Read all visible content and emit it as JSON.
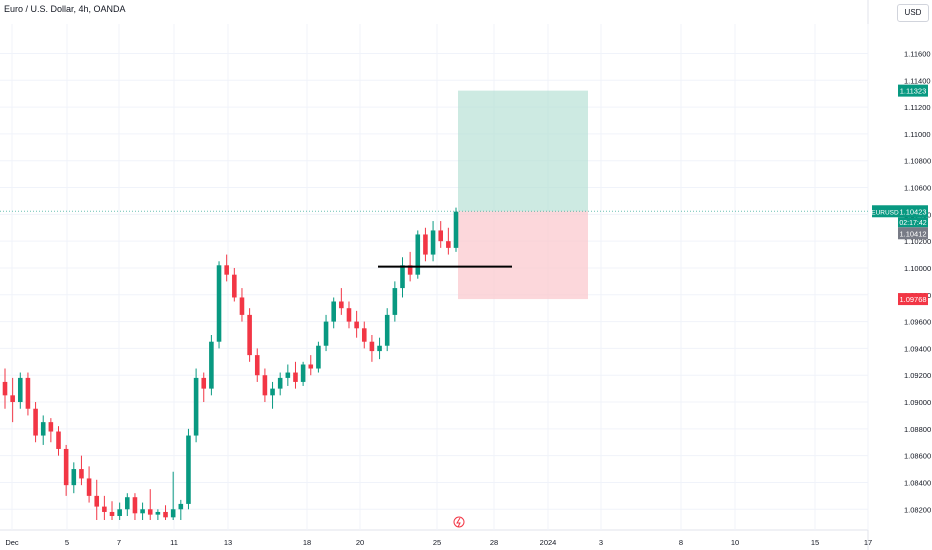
{
  "header": {
    "title": "Euro / U.S. Dollar, 4h, OANDA",
    "currency_button": "USD"
  },
  "chart_data": {
    "type": "candlestick",
    "title": "Euro / U.S. Dollar, 4h, OANDA",
    "symbol": "EURUSD",
    "y_range": [
      1.0812,
      1.1182
    ],
    "y_ticks": [
      "1.11600",
      "1.11400",
      "1.11200",
      "1.11000",
      "1.10800",
      "1.10600",
      "1.10400",
      "1.10200",
      "1.10000",
      "1.09800",
      "1.09600",
      "1.09400",
      "1.09200",
      "1.09000",
      "1.08800",
      "1.08600",
      "1.08400",
      "1.08200"
    ],
    "x_tick_labels": [
      "Dec",
      "5",
      "7",
      "11",
      "13",
      "18",
      "20",
      "25",
      "28",
      "2024",
      "3",
      "8",
      "10",
      "15",
      "17"
    ],
    "last_price": {
      "label": "EURUSD",
      "value": "1.10423",
      "countdown": "02:17:42",
      "color": "#089981"
    },
    "price_tags": [
      {
        "value": "1.11323",
        "color": "#089981"
      },
      {
        "value": "1.10412",
        "color": "#787b86"
      },
      {
        "value": "1.09768",
        "color": "#f23645"
      }
    ],
    "position": {
      "entry": 1.10423,
      "target": 1.11323,
      "stop": 1.09768,
      "profit_color": "#b2dfd3",
      "loss_color": "#fbc9cf"
    },
    "support_line": {
      "price": 1.1001
    },
    "candles": [
      [
        1.0915,
        1.0925,
        1.0895,
        1.0905
      ],
      [
        1.0905,
        1.0918,
        1.0885,
        1.09
      ],
      [
        1.09,
        1.0922,
        1.0895,
        1.0918
      ],
      [
        1.0918,
        1.0922,
        1.089,
        1.0895
      ],
      [
        1.0895,
        1.09,
        1.087,
        1.0875
      ],
      [
        1.0875,
        1.089,
        1.0868,
        1.0885
      ],
      [
        1.0885,
        1.0888,
        1.087,
        1.0878
      ],
      [
        1.0878,
        1.0882,
        1.086,
        1.0865
      ],
      [
        1.0865,
        1.0868,
        1.083,
        1.0838
      ],
      [
        1.0838,
        1.0855,
        1.0832,
        1.085
      ],
      [
        1.085,
        1.086,
        1.0838,
        1.0843
      ],
      [
        1.0843,
        1.0852,
        1.0825,
        1.083
      ],
      [
        1.083,
        1.0842,
        1.0812,
        1.0822
      ],
      [
        1.0822,
        1.083,
        1.0812,
        1.0818
      ],
      [
        1.0818,
        1.0826,
        1.0812,
        1.0815
      ],
      [
        1.0815,
        1.0825,
        1.0812,
        1.082
      ],
      [
        1.082,
        1.0832,
        1.0815,
        1.0829
      ],
      [
        1.0829,
        1.0832,
        1.0812,
        1.0817
      ],
      [
        1.0817,
        1.0825,
        1.0812,
        1.082
      ],
      [
        1.082,
        1.0835,
        1.0812,
        1.0816
      ],
      [
        1.0816,
        1.082,
        1.0812,
        1.0818
      ],
      [
        1.0818,
        1.0823,
        1.0812,
        1.0814
      ],
      [
        1.0814,
        1.0848,
        1.0812,
        1.082
      ],
      [
        1.082,
        1.0827,
        1.0812,
        1.0824
      ],
      [
        1.0824,
        1.088,
        1.082,
        1.0875
      ],
      [
        1.0875,
        1.0925,
        1.087,
        1.0918
      ],
      [
        1.0918,
        1.0922,
        1.09,
        1.091
      ],
      [
        1.091,
        1.095,
        1.0905,
        1.0945
      ],
      [
        1.0945,
        1.1005,
        1.094,
        1.1002
      ],
      [
        1.1002,
        1.101,
        1.099,
        1.0995
      ],
      [
        1.0995,
        1.1,
        1.0975,
        1.0978
      ],
      [
        1.0978,
        1.0985,
        1.096,
        1.0965
      ],
      [
        1.0965,
        1.097,
        1.093,
        1.0935
      ],
      [
        1.0935,
        1.094,
        1.0915,
        1.092
      ],
      [
        1.092,
        1.0925,
        1.09,
        1.0905
      ],
      [
        1.0905,
        1.0915,
        1.0895,
        1.091
      ],
      [
        1.091,
        1.0922,
        1.0905,
        1.0918
      ],
      [
        1.0918,
        1.0928,
        1.0912,
        1.0922
      ],
      [
        1.0922,
        1.093,
        1.091,
        1.0915
      ],
      [
        1.0915,
        1.093,
        1.0912,
        1.0928
      ],
      [
        1.0928,
        1.0935,
        1.092,
        1.0925
      ],
      [
        1.0925,
        1.0945,
        1.0922,
        1.0942
      ],
      [
        1.0942,
        1.0965,
        1.0938,
        1.096
      ],
      [
        1.096,
        1.0978,
        1.0955,
        1.0975
      ],
      [
        1.0975,
        1.0985,
        1.0965,
        1.097
      ],
      [
        1.097,
        1.0975,
        1.0955,
        1.096
      ],
      [
        1.096,
        1.0968,
        1.0948,
        1.0955
      ],
      [
        1.0955,
        1.096,
        1.094,
        1.0945
      ],
      [
        1.0945,
        1.095,
        1.093,
        1.0938
      ],
      [
        1.0938,
        1.0948,
        1.0932,
        1.0942
      ],
      [
        1.0942,
        1.097,
        1.0938,
        1.0965
      ],
      [
        1.0965,
        1.099,
        1.096,
        1.0985
      ],
      [
        1.0985,
        1.1008,
        1.0978,
        1.1002
      ],
      [
        1.1002,
        1.1012,
        1.099,
        1.0995
      ],
      [
        1.0995,
        1.1028,
        1.0992,
        1.1025
      ],
      [
        1.1025,
        1.103,
        1.1005,
        1.101
      ],
      [
        1.101,
        1.1035,
        1.1005,
        1.1028
      ],
      [
        1.1028,
        1.1035,
        1.1015,
        1.102
      ],
      [
        1.102,
        1.103,
        1.101,
        1.1015
      ],
      [
        1.1015,
        1.1045,
        1.1012,
        1.1042
      ]
    ]
  }
}
